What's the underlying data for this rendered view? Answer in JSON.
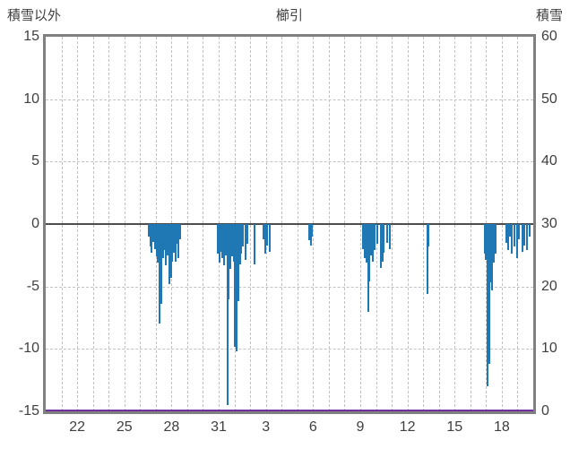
{
  "header": {
    "left_axis_title": "積雪以外",
    "chart_title": "櫛引",
    "right_axis_title": "積雪"
  },
  "chart_data": {
    "type": "bar",
    "title": "櫛引",
    "left_axis": {
      "label": "積雪以外",
      "min": -15,
      "max": 15,
      "ticks": [
        15,
        10,
        5,
        0,
        -5,
        -10,
        -15
      ]
    },
    "right_axis": {
      "label": "積雪",
      "min": 0,
      "max": 60,
      "ticks": [
        60,
        50,
        40,
        30,
        20,
        10,
        0
      ]
    },
    "x_axis": {
      "tick_labels": [
        "22",
        "25",
        "28",
        "31",
        "3",
        "6",
        "9",
        "12",
        "15",
        "18"
      ],
      "tick_positions": [
        2,
        5,
        8,
        11,
        14,
        17,
        20,
        23,
        26,
        29
      ],
      "range": [
        0,
        31
      ],
      "daily_gridlines": true
    },
    "grid": true,
    "zero_line": {
      "value": 0,
      "color": "#4d4d4d"
    },
    "colors": {
      "bar": "#1f77b4",
      "snow_line": "#7030a0",
      "frame": "#808080",
      "grid": "#c2c2c2"
    },
    "series": [
      {
        "name": "積雪以外",
        "type": "bar",
        "axis": "left",
        "color": "#1f77b4",
        "points": [
          [
            6.55,
            -1.0
          ],
          [
            6.65,
            -1.8
          ],
          [
            6.75,
            -2.3
          ],
          [
            6.85,
            -1.4
          ],
          [
            6.95,
            -2.0
          ],
          [
            7.05,
            -2.6
          ],
          [
            7.15,
            -3.1
          ],
          [
            7.25,
            -8.0
          ],
          [
            7.35,
            -6.4
          ],
          [
            7.45,
            -2.7
          ],
          [
            7.55,
            -2.1
          ],
          [
            7.65,
            -3.3
          ],
          [
            7.75,
            -2.5
          ],
          [
            7.85,
            -4.8
          ],
          [
            7.95,
            -4.3
          ],
          [
            8.05,
            -3.0
          ],
          [
            8.15,
            -2.3
          ],
          [
            8.25,
            -3.0
          ],
          [
            8.35,
            -1.6
          ],
          [
            8.45,
            -2.7
          ],
          [
            8.55,
            -1.2
          ],
          [
            10.95,
            -2.4
          ],
          [
            11.05,
            -3.1
          ],
          [
            11.15,
            -2.2
          ],
          [
            11.25,
            -2.7
          ],
          [
            11.35,
            -3.3
          ],
          [
            11.45,
            -2.5
          ],
          [
            11.55,
            -14.5
          ],
          [
            11.65,
            -6.0
          ],
          [
            11.75,
            -3.6
          ],
          [
            11.85,
            -2.6
          ],
          [
            11.95,
            -3.0
          ],
          [
            12.05,
            -9.8
          ],
          [
            12.15,
            -10.2
          ],
          [
            12.25,
            -6.2
          ],
          [
            12.35,
            -3.2
          ],
          [
            12.45,
            -2.4
          ],
          [
            12.55,
            -1.8
          ],
          [
            12.7,
            -2.9
          ],
          [
            12.85,
            -1.6
          ],
          [
            13.25,
            -3.2
          ],
          [
            13.85,
            -1.2
          ],
          [
            13.95,
            -2.4
          ],
          [
            14.05,
            -1.7
          ],
          [
            14.25,
            -2.2
          ],
          [
            16.75,
            -1.3
          ],
          [
            16.85,
            -1.7
          ],
          [
            16.95,
            -1.0
          ],
          [
            20.2,
            -2.0
          ],
          [
            20.3,
            -2.7
          ],
          [
            20.4,
            -3.1
          ],
          [
            20.5,
            -7.0
          ],
          [
            20.6,
            -4.6
          ],
          [
            20.7,
            -2.5
          ],
          [
            20.8,
            -3.0
          ],
          [
            20.9,
            -2.1
          ],
          [
            21.1,
            -1.6
          ],
          [
            21.3,
            -3.5
          ],
          [
            21.4,
            -3.0
          ],
          [
            21.5,
            -2.3
          ],
          [
            21.7,
            -1.5
          ],
          [
            21.9,
            -2.0
          ],
          [
            24.25,
            -5.6
          ],
          [
            24.35,
            -1.8
          ],
          [
            27.9,
            -2.4
          ],
          [
            28.0,
            -2.9
          ],
          [
            28.1,
            -13.0
          ],
          [
            28.2,
            -11.2
          ],
          [
            28.3,
            -4.7
          ],
          [
            28.4,
            -5.3
          ],
          [
            28.5,
            -3.1
          ],
          [
            28.6,
            -2.4
          ],
          [
            29.3,
            -1.5
          ],
          [
            29.4,
            -2.1
          ],
          [
            29.5,
            -1.0
          ],
          [
            29.65,
            -2.4
          ],
          [
            29.8,
            -1.8
          ],
          [
            29.95,
            -2.7
          ],
          [
            30.1,
            -1.2
          ],
          [
            30.3,
            -2.2
          ],
          [
            30.45,
            -1.7
          ],
          [
            30.6,
            -2.1
          ],
          [
            30.75,
            -1.0
          ]
        ]
      },
      {
        "name": "積雪",
        "type": "line",
        "axis": "right",
        "color": "#7030a0",
        "constant": 0
      }
    ]
  }
}
